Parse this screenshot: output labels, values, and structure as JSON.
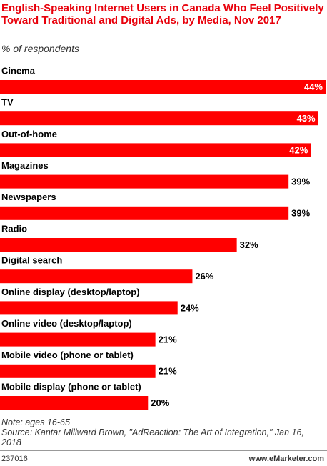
{
  "chart_data": {
    "type": "bar",
    "orientation": "horizontal",
    "title": "English-Speaking Internet Users in Canada Who Feel Positively Toward Traditional and Digital Ads, by Media, Nov 2017",
    "subtitle": "% of respondents",
    "categories": [
      "Cinema",
      "TV",
      "Out-of-home",
      "Magazines",
      "Newspapers",
      "Radio",
      "Digital search",
      "Online display (desktop/laptop)",
      "Online video (desktop/laptop)",
      "Mobile video (phone or tablet)",
      "Mobile display (phone or tablet)"
    ],
    "values": [
      44,
      43,
      42,
      39,
      39,
      32,
      26,
      24,
      21,
      21,
      20
    ],
    "value_labels": [
      "44%",
      "43%",
      "42%",
      "39%",
      "39%",
      "32%",
      "26%",
      "24%",
      "21%",
      "21%",
      "20%"
    ],
    "color": "#ff0000",
    "note": "Note: ages 16-65",
    "source": "Source: Kantar Millward Brown, \"AdReaction: The Art of Integration,\" Jan 16, 2018"
  },
  "footer": {
    "id": "237016",
    "site": "www.eMarketer.com"
  }
}
